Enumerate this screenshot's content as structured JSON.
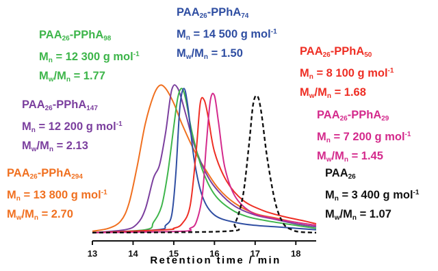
{
  "chart_data": {
    "type": "line",
    "xlabel": "Retention time / min",
    "xlim": [
      13,
      18.5
    ],
    "xticks": [
      13,
      14,
      15,
      16,
      17,
      18
    ],
    "yaxis_visible": false,
    "series": [
      {
        "id": "s294",
        "color": "#f07020",
        "dash": false,
        "text": {
          "base": "PAA",
          "base_sub": "26",
          "link": "-PPhA",
          "link_sub": "294",
          "mn_value": "= 13 800 g mol",
          "mn_exp": "-1",
          "disp_value": "= 2.70"
        },
        "x": [
          13.0,
          13.4,
          13.7,
          13.9,
          14.1,
          14.3,
          14.5,
          14.65,
          14.8,
          15.0,
          15.2,
          15.5,
          15.8,
          16.1,
          16.5,
          17.0,
          17.5,
          18.0,
          18.5
        ],
        "y": [
          0.01,
          0.03,
          0.08,
          0.2,
          0.45,
          0.74,
          0.93,
          1.0,
          0.98,
          0.88,
          0.74,
          0.56,
          0.42,
          0.3,
          0.2,
          0.13,
          0.1,
          0.07,
          0.05
        ]
      },
      {
        "id": "s147",
        "color": "#7b3f9e",
        "dash": false,
        "text": {
          "base": "PAA",
          "base_sub": "26",
          "link": "-PPhA",
          "link_sub": "147",
          "mn_value": "= 12 200 g mol",
          "mn_exp": "-1",
          "disp_value": "= 2.13"
        },
        "x": [
          13.0,
          13.8,
          14.1,
          14.3,
          14.5,
          14.65,
          14.8,
          14.95,
          15.1,
          15.3,
          15.5,
          15.8,
          16.1,
          16.5,
          17.0,
          17.5,
          18.0,
          18.5
        ],
        "y": [
          0.0,
          0.02,
          0.06,
          0.16,
          0.37,
          0.46,
          0.68,
          0.97,
          0.98,
          0.8,
          0.6,
          0.4,
          0.28,
          0.18,
          0.12,
          0.09,
          0.06,
          0.04
        ]
      },
      {
        "id": "s98",
        "color": "#3db54a",
        "dash": false,
        "text": {
          "base": "PAA",
          "base_sub": "26",
          "link": "-PPhA",
          "link_sub": "98",
          "mn_value": "= 12 300 g mol",
          "mn_exp": "-1",
          "disp_value": "= 1.77"
        },
        "x": [
          13.0,
          14.3,
          14.5,
          14.7,
          14.85,
          15.0,
          15.1,
          15.2,
          15.3,
          15.45,
          15.7,
          16.0,
          16.4,
          16.8,
          17.3,
          18.0,
          18.5
        ],
        "y": [
          0.0,
          0.02,
          0.07,
          0.18,
          0.4,
          0.72,
          0.92,
          0.98,
          0.9,
          0.68,
          0.43,
          0.26,
          0.16,
          0.11,
          0.08,
          0.05,
          0.03
        ]
      },
      {
        "id": "s74",
        "color": "#2f4ea2",
        "dash": false,
        "text": {
          "base": "PAA",
          "base_sub": "26",
          "link": "-PPhA",
          "link_sub": "74",
          "mn_value": "= 14 500 g mol",
          "mn_exp": "-1",
          "disp_value": "= 1.50"
        },
        "x": [
          13.0,
          14.6,
          14.8,
          14.95,
          15.05,
          15.15,
          15.25,
          15.35,
          15.5,
          15.7,
          16.0,
          16.5,
          17.0,
          17.5,
          18.0,
          18.5
        ],
        "y": [
          0.0,
          0.02,
          0.05,
          0.12,
          0.4,
          0.85,
          0.98,
          0.85,
          0.5,
          0.25,
          0.12,
          0.07,
          0.05,
          0.04,
          0.03,
          0.02
        ]
      },
      {
        "id": "s50",
        "color": "#ee2e24",
        "dash": false,
        "text": {
          "base": "PAA",
          "base_sub": "26",
          "link": "-PPhA",
          "link_sub": "50",
          "mn_value": "= 8 100 g mol",
          "mn_exp": "-1",
          "disp_value": "= 1.68"
        },
        "x": [
          13.0,
          14.8,
          15.0,
          15.2,
          15.4,
          15.55,
          15.65,
          15.75,
          15.85,
          16.0,
          16.3,
          16.7,
          17.2,
          17.7,
          18.2,
          18.5
        ],
        "y": [
          0.0,
          0.02,
          0.03,
          0.06,
          0.18,
          0.55,
          0.88,
          0.9,
          0.78,
          0.55,
          0.35,
          0.22,
          0.15,
          0.11,
          0.08,
          0.06
        ]
      },
      {
        "id": "s29",
        "color": "#d42a8c",
        "dash": false,
        "text": {
          "base": "PAA",
          "base_sub": "26",
          "link": "-PPhA",
          "link_sub": "29",
          "mn_value": "= 7 200 g mol",
          "mn_exp": "-1",
          "disp_value": "= 1.45"
        },
        "x": [
          13.0,
          15.2,
          15.4,
          15.55,
          15.7,
          15.8,
          15.9,
          16.0,
          16.1,
          16.25,
          16.5,
          16.9,
          17.4,
          18.0,
          18.5
        ],
        "y": [
          0.0,
          0.01,
          0.03,
          0.07,
          0.25,
          0.6,
          0.9,
          0.93,
          0.75,
          0.45,
          0.25,
          0.14,
          0.1,
          0.07,
          0.05
        ]
      },
      {
        "id": "s26",
        "color": "#111111",
        "dash": true,
        "text": {
          "base": "PAA",
          "base_sub": "26",
          "link": "",
          "link_sub": "",
          "mn_value": "= 3 400 g mol",
          "mn_exp": "-1",
          "disp_value": "= 1.07"
        },
        "x": [
          13.0,
          16.3,
          16.5,
          16.7,
          16.85,
          16.95,
          17.05,
          17.15,
          17.3,
          17.5,
          17.7,
          17.9,
          18.1,
          18.5
        ],
        "y": [
          0.0,
          0.01,
          0.06,
          0.25,
          0.6,
          0.87,
          0.93,
          0.82,
          0.5,
          0.2,
          0.06,
          0.02,
          0.005,
          0.0
        ]
      }
    ]
  }
}
